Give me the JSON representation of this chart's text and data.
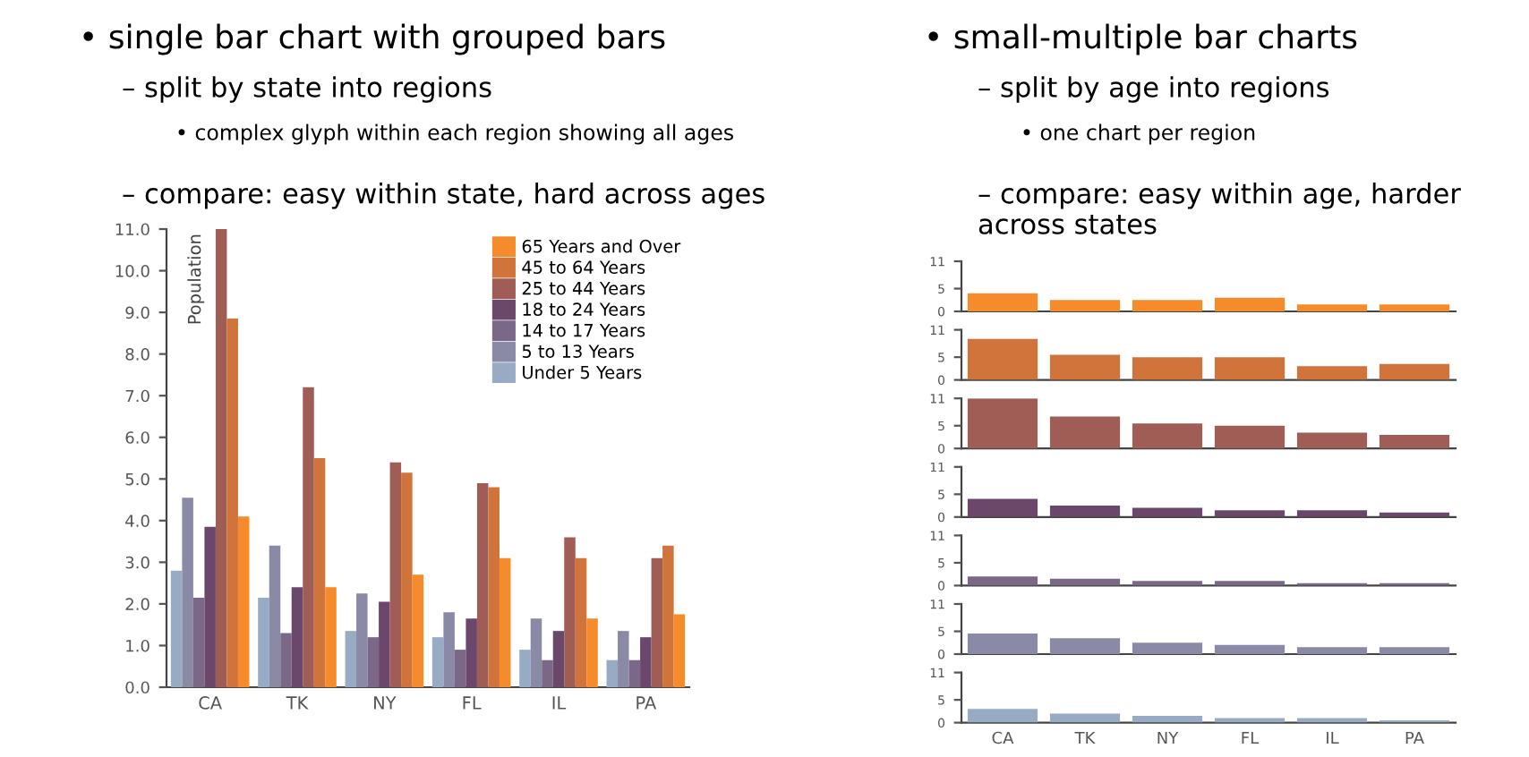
{
  "chart_data": [
    {
      "type": "bar",
      "title": "• single bar chart with grouped bars",
      "annotations": [
        "– split by state into regions",
        "• complex glyph within each region showing all ages",
        "– compare: easy within state, hard across ages"
      ],
      "ylabel": "Population",
      "categories": [
        "CA",
        "TK",
        "NY",
        "FL",
        "IL",
        "PA"
      ],
      "series": [
        {
          "name": "Under 5 Years",
          "color": "#98abc5",
          "values": [
            2.8,
            2.15,
            1.35,
            1.2,
            0.9,
            0.65
          ]
        },
        {
          "name": "5 to 13 Years",
          "color": "#8a89a6",
          "values": [
            4.55,
            3.4,
            2.25,
            1.8,
            1.65,
            1.35
          ]
        },
        {
          "name": "14 to 17 Years",
          "color": "#7b6888",
          "values": [
            2.15,
            1.3,
            1.2,
            0.9,
            0.65,
            0.65
          ]
        },
        {
          "name": "18 to 24 Years",
          "color": "#6b486b",
          "values": [
            3.85,
            2.4,
            2.05,
            1.65,
            1.35,
            1.2
          ]
        },
        {
          "name": "25 to 44 Years",
          "color": "#a05d56",
          "values": [
            11.0,
            7.2,
            5.4,
            4.9,
            3.6,
            3.1
          ]
        },
        {
          "name": "45 to 64 Years",
          "color": "#d0743c",
          "values": [
            8.85,
            5.5,
            5.15,
            4.8,
            3.1,
            3.4
          ]
        },
        {
          "name": "65 Years and Over",
          "color": "#f58b2a",
          "values": [
            4.1,
            2.4,
            2.7,
            3.1,
            1.65,
            1.75
          ]
        }
      ],
      "ylim": [
        0,
        11
      ],
      "yticks": [
        {
          "value": 0,
          "label": "0.0"
        },
        {
          "value": 1,
          "label": "1.0"
        },
        {
          "value": 2,
          "label": "2.0"
        },
        {
          "value": 3,
          "label": "3.0"
        },
        {
          "value": 4,
          "label": "4.0"
        },
        {
          "value": 5,
          "label": "5.0"
        },
        {
          "value": 6,
          "label": "6.0"
        },
        {
          "value": 7,
          "label": "7.0"
        },
        {
          "value": 8,
          "label": "8.0"
        },
        {
          "value": 9,
          "label": "9.0"
        },
        {
          "value": 10,
          "label": "10.0"
        },
        {
          "value": 11,
          "label": "11.0"
        }
      ],
      "legend": "top right",
      "grid": false
    },
    {
      "type": "bar",
      "title": "• small-multiple bar charts",
      "annotations": [
        "– split by age into regions",
        "• one chart per region",
        "– compare: easy within age, harder across states"
      ],
      "categories": [
        null,
        null,
        null,
        null,
        null,
        null
      ],
      "series": [
        {
          "color": "#f58b2a",
          "values": [
            4,
            2.5,
            2.5,
            3,
            1.5,
            1.5
          ]
        }
      ],
      "ylim": [
        0,
        11
      ],
      "yticks": [
        0,
        5,
        11
      ],
      "tick_labels": "y",
      "grid": false
    },
    {
      "type": "bar",
      "categories": [
        null,
        null,
        null,
        null,
        null,
        null
      ],
      "series": [
        {
          "color": "#d0743c",
          "values": [
            9,
            5.5,
            5,
            5,
            3,
            3.5
          ]
        }
      ],
      "ylim": [
        0,
        11
      ],
      "yticks": [
        0,
        5,
        11
      ],
      "tick_labels": "y",
      "grid": false
    },
    {
      "type": "bar",
      "categories": [
        null,
        null,
        null,
        null,
        null,
        null
      ],
      "series": [
        {
          "color": "#a05d56",
          "values": [
            11,
            7,
            5.5,
            5,
            3.5,
            3
          ]
        }
      ],
      "ylim": [
        0,
        11
      ],
      "yticks": [
        0,
        5,
        11
      ],
      "tick_labels": "y",
      "grid": false
    },
    {
      "type": "bar",
      "categories": [
        null,
        null,
        null,
        null,
        null,
        null
      ],
      "series": [
        {
          "color": "#6b486b",
          "values": [
            4,
            2.5,
            2,
            1.5,
            1.5,
            1
          ]
        }
      ],
      "ylim": [
        0,
        11
      ],
      "yticks": [
        0,
        5,
        11
      ],
      "tick_labels": "y",
      "grid": false
    },
    {
      "type": "bar",
      "categories": [
        null,
        null,
        null,
        null,
        null,
        null
      ],
      "series": [
        {
          "color": "#7b6888",
          "values": [
            2,
            1.5,
            1,
            1,
            0.5,
            0.5
          ]
        }
      ],
      "ylim": [
        0,
        11
      ],
      "yticks": [
        0,
        5,
        11
      ],
      "tick_labels": "y",
      "grid": false
    },
    {
      "type": "bar",
      "categories": [
        null,
        null,
        null,
        null,
        null,
        null
      ],
      "series": [
        {
          "color": "#8a89a6",
          "values": [
            4.5,
            3.5,
            2.5,
            2,
            1.5,
            1.5
          ]
        }
      ],
      "ylim": [
        0,
        11
      ],
      "yticks": [
        0,
        5,
        11
      ],
      "tick_labels": "y",
      "grid": false
    },
    {
      "type": "bar",
      "categories": [
        "CA",
        "TK",
        "NY",
        "FL",
        "IL",
        "PA"
      ],
      "series": [
        {
          "color": "#98abc5",
          "values": [
            3,
            2,
            1.5,
            1,
            1,
            0.5
          ]
        }
      ],
      "ylim": [
        0,
        11
      ],
      "yticks": [
        0,
        5,
        11
      ],
      "grid": false
    }
  ]
}
